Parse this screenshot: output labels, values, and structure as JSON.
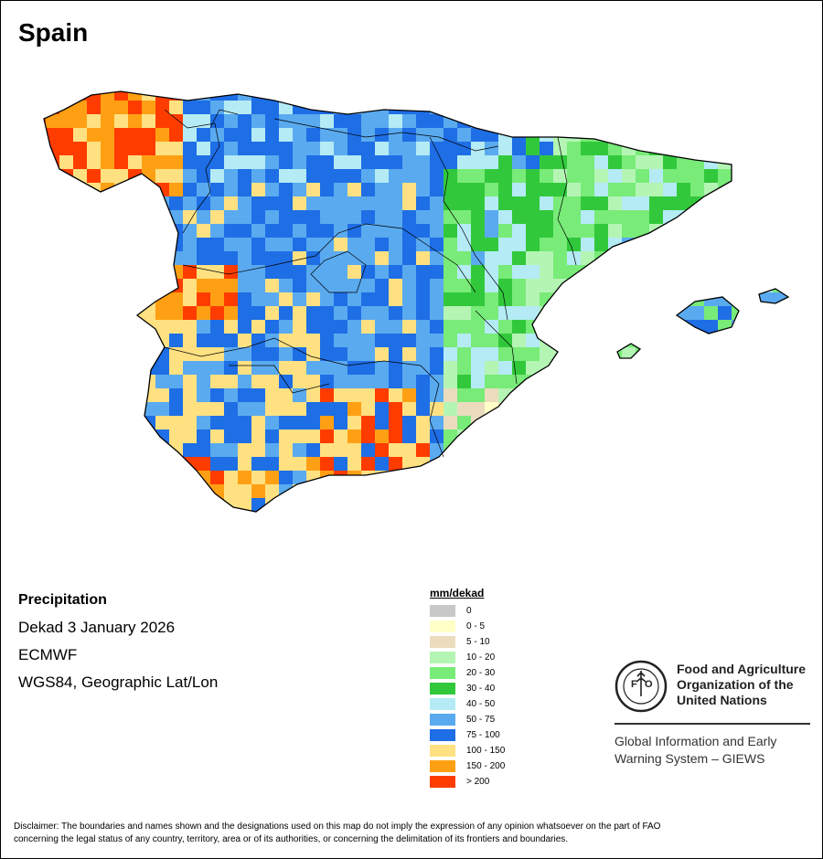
{
  "title": "Spain",
  "info": {
    "variable": "Precipitation",
    "period": "Dekad 3 January 2026",
    "source": "ECMWF",
    "projection": "WGS84, Geographic Lat/Lon"
  },
  "legend": {
    "unit": "mm/dekad",
    "classes": [
      {
        "label": "0",
        "color": "#c8c8c8"
      },
      {
        "label": "0 - 5",
        "color": "#ffffc8"
      },
      {
        "label": "5 - 10",
        "color": "#ebdcbe"
      },
      {
        "label": "10 - 20",
        "color": "#b4f5b4"
      },
      {
        "label": "20 - 30",
        "color": "#78eb78"
      },
      {
        "label": "30 - 40",
        "color": "#32c83c"
      },
      {
        "label": "40 - 50",
        "color": "#b4ebf5"
      },
      {
        "label": "50 - 75",
        "color": "#5aaaf0"
      },
      {
        "label": "75 - 100",
        "color": "#1e6ee6"
      },
      {
        "label": "100 - 150",
        "color": "#ffe182"
      },
      {
        "label": "150 - 200",
        "color": "#ffa014"
      },
      {
        "label": "> 200",
        "color": "#ff3c00"
      }
    ]
  },
  "org": {
    "name_line1": "Food and Agriculture",
    "name_line2": "Organization of the",
    "name_line3": "United Nations",
    "system_line1": "Global Information and Early",
    "system_line2": "Warning System – GIEWS",
    "logo_text": "FIAT PANIS"
  },
  "disclaimer_line1": "Disclaimer: The boundaries and names shown and the designations used on this map do not imply the expression of any opinion whatsoever on the part of FAO",
  "disclaimer_line2": "concerning the legal status of any country, territory, area or of its authorities, or concerning the delimitation of its frontiers and boundaries."
}
